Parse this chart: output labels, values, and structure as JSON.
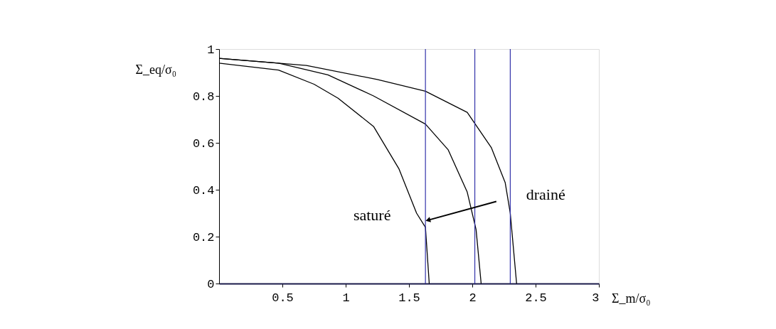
{
  "chart_data": {
    "type": "line",
    "xlabel": "Σ_m/σ₀",
    "ylabel": "Σ_eq/σ₀",
    "xlim": [
      0,
      3
    ],
    "xticks": [
      0.5,
      1,
      1.5,
      2,
      2.5,
      3
    ],
    "ylim": [
      0,
      1
    ],
    "yticks": [
      0,
      0.2,
      0.4,
      0.6,
      0.8,
      1
    ],
    "grid": false,
    "legend": false,
    "marker": "none",
    "line_style": "solid",
    "series": [
      {
        "color": "#000000",
        "x": [
          0,
          0.47,
          0.75,
          0.94,
          1.22,
          1.42,
          1.56,
          1.63,
          1.66
        ],
        "values": [
          0.94,
          0.91,
          0.85,
          0.79,
          0.67,
          0.49,
          0.3,
          0.24,
          0
        ]
      },
      {
        "color": "#000000",
        "x": [
          0,
          0.47,
          0.86,
          1.22,
          1.63,
          1.81,
          1.96,
          2.03,
          2.07
        ],
        "values": [
          0.96,
          0.94,
          0.89,
          0.8,
          0.68,
          0.57,
          0.39,
          0.23,
          0
        ]
      },
      {
        "color": "#000000",
        "x": [
          0,
          0.69,
          1.25,
          1.63,
          1.96,
          2.15,
          2.26,
          2.3,
          2.35
        ],
        "values": [
          0.96,
          0.93,
          0.87,
          0.82,
          0.73,
          0.58,
          0.43,
          0.3,
          0
        ]
      }
    ],
    "ref_lines": [
      {
        "axis": "x",
        "value": 1.63,
        "color": "#3333aa"
      },
      {
        "axis": "x",
        "value": 2.02,
        "color": "#3333aa"
      },
      {
        "axis": "x",
        "value": 2.3,
        "color": "#3333aa"
      }
    ],
    "annotations": [
      "saturé",
      "drainé"
    ]
  }
}
